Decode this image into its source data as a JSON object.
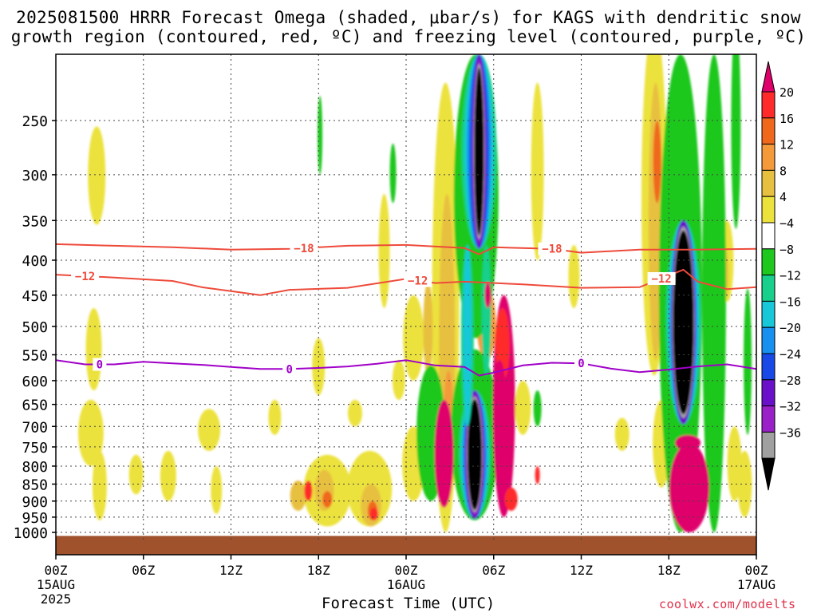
{
  "title": {
    "line1": "2025081500 HRRR Forecast Omega (shaded, μbar/s) for KAGS with dendritic snow",
    "line2": "growth region (contoured, red, ºC) and freezing level (contoured, purple, ºC)"
  },
  "xlabel": "Forecast Time (UTC)",
  "credit": "coolwx.com/modelts",
  "colorbar": {
    "labels": [
      "20",
      "16",
      "12",
      "8",
      "4",
      "−4",
      "−8",
      "−12",
      "−16",
      "−20",
      "−24",
      "−28",
      "−32",
      "−36"
    ],
    "colors": [
      "#e0006c",
      "#ff2a2a",
      "#f0681c",
      "#f49a3a",
      "#e8c040",
      "#ece23c",
      "#ffffff",
      "#1ec81e",
      "#18d08c",
      "#18c8d8",
      "#1890f0",
      "#1848e6",
      "#6a10c8",
      "#9a20c8",
      "#a0a0a0",
      "#000000"
    ]
  },
  "chart_data": {
    "type": "heatmap",
    "title": "2025081500 HRRR Forecast Omega (shaded, μbar/s) for KAGS with dendritic snow growth region (contoured, red, ºC) and freezing level (contoured, purple, ºC)",
    "xlabel": "Forecast Time (UTC)",
    "ylabel": "",
    "y_scale": "log",
    "x_range_hours": [
      0,
      48
    ],
    "y_range_hPa": [
      1030,
      200
    ],
    "y_ticks": [
      250,
      300,
      350,
      400,
      450,
      500,
      550,
      600,
      650,
      700,
      750,
      800,
      850,
      900,
      950,
      1000
    ],
    "x_ticks": [
      {
        "h": 0,
        "label": "00Z",
        "sub1": "15AUG",
        "sub2": "2025"
      },
      {
        "h": 6,
        "label": "06Z",
        "sub1": "",
        "sub2": ""
      },
      {
        "h": 12,
        "label": "12Z",
        "sub1": "",
        "sub2": ""
      },
      {
        "h": 18,
        "label": "18Z",
        "sub1": "",
        "sub2": ""
      },
      {
        "h": 24,
        "label": "00Z",
        "sub1": "16AUG",
        "sub2": ""
      },
      {
        "h": 30,
        "label": "06Z",
        "sub1": "",
        "sub2": ""
      },
      {
        "h": 36,
        "label": "12Z",
        "sub1": "",
        "sub2": ""
      },
      {
        "h": 42,
        "label": "18Z",
        "sub1": "",
        "sub2": ""
      },
      {
        "h": 48,
        "label": "00Z",
        "sub1": "17AUG",
        "sub2": ""
      }
    ],
    "grid": true,
    "omega_units": "μbar/s",
    "omega_bins": [
      "<-36",
      "-36..-32",
      "-32..-28",
      "-28..-24",
      "-24..-20",
      "-20..-16",
      "-16..-12",
      "-12..-8",
      "-8..-4",
      "-4..4",
      "4..8",
      "8..12",
      "12..16",
      "16..20",
      ">20"
    ],
    "omega_features": [
      {
        "label": "upper-level core",
        "h": 29.0,
        "p_top": 200,
        "p_bottom": 375,
        "min_value": -40
      },
      {
        "label": "lower-level core",
        "h": 28.7,
        "p_top": 640,
        "p_bottom": 945,
        "min_value": -40
      },
      {
        "label": "evening core",
        "h": 43.0,
        "p_top": 355,
        "p_bottom": 690,
        "min_value": -40
      },
      {
        "label": "sinking max",
        "h": 43.4,
        "p_top": 720,
        "p_bottom": 1000,
        "max_value": 24
      },
      {
        "label": "sinking max",
        "h": 30.7,
        "p_top": 440,
        "p_bottom": 960,
        "max_value": 24
      },
      {
        "label": "sinking max",
        "h": 26.6,
        "p_top": 640,
        "p_bottom": 930,
        "max_value": 22
      }
    ],
    "contours": [
      {
        "name": "-18",
        "color": "#ee4a3a",
        "labels_at_h": [
          17,
          34
        ],
        "points": [
          [
            0,
            379
          ],
          [
            4,
            381
          ],
          [
            8,
            383
          ],
          [
            12,
            386
          ],
          [
            16,
            385
          ],
          [
            20,
            381
          ],
          [
            24,
            380
          ],
          [
            28,
            384
          ],
          [
            29,
            392
          ],
          [
            30,
            383
          ],
          [
            34,
            385
          ],
          [
            36,
            390
          ],
          [
            40,
            386
          ],
          [
            44,
            386
          ],
          [
            48,
            385
          ]
        ]
      },
      {
        "name": "-12",
        "color": "#ee4a3a",
        "labels_at_h": [
          2,
          24.8,
          41.5
        ],
        "points": [
          [
            0,
            420
          ],
          [
            4,
            424
          ],
          [
            8,
            429
          ],
          [
            10,
            438
          ],
          [
            12,
            444
          ],
          [
            14,
            450
          ],
          [
            16,
            442
          ],
          [
            20,
            439
          ],
          [
            24,
            426
          ],
          [
            26,
            432
          ],
          [
            28,
            430
          ],
          [
            32,
            434
          ],
          [
            36,
            439
          ],
          [
            40,
            438
          ],
          [
            43,
            413
          ],
          [
            44,
            430
          ],
          [
            46,
            441
          ],
          [
            48,
            438
          ]
        ]
      },
      {
        "name": "0",
        "color": "#a000c8",
        "labels_at_h": [
          3,
          16,
          36
        ],
        "points": [
          [
            0,
            560
          ],
          [
            2,
            568
          ],
          [
            4,
            568
          ],
          [
            6,
            563
          ],
          [
            8,
            566
          ],
          [
            10,
            569
          ],
          [
            12,
            573
          ],
          [
            14,
            577
          ],
          [
            16,
            577
          ],
          [
            18,
            575
          ],
          [
            20,
            572
          ],
          [
            22,
            567
          ],
          [
            24,
            560
          ],
          [
            26,
            570
          ],
          [
            28,
            573
          ],
          [
            29,
            590
          ],
          [
            30,
            584
          ],
          [
            32,
            570
          ],
          [
            34,
            565
          ],
          [
            36,
            566
          ],
          [
            38,
            576
          ],
          [
            40,
            583
          ],
          [
            42,
            578
          ],
          [
            44,
            572
          ],
          [
            46,
            568
          ],
          [
            48,
            577
          ]
        ]
      }
    ],
    "terrain": {
      "color": "#a0522d",
      "p_top": 1012
    }
  }
}
